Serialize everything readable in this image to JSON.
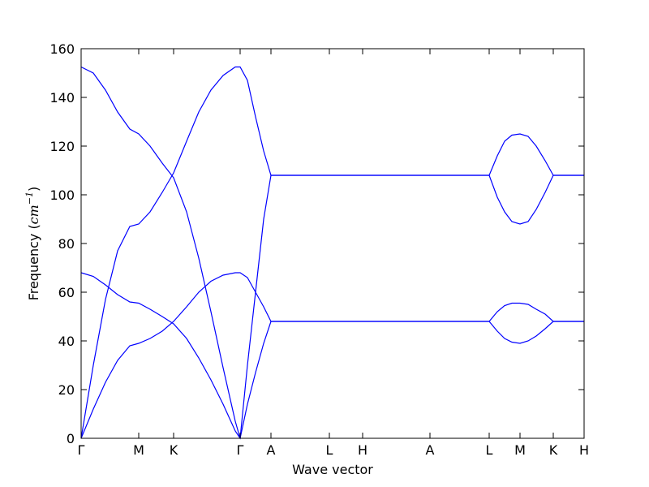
{
  "chart_data": {
    "type": "line",
    "xlabel": "Wave vector",
    "ylabel": [
      "Frequency (",
      "cm",
      "−1",
      ")"
    ],
    "xlim": [
      0,
      6.2
    ],
    "xticks": [
      {
        "value": 0,
        "label": "Γ"
      },
      {
        "value": 0.71,
        "label": "M"
      },
      {
        "value": 1.14,
        "label": "K"
      },
      {
        "value": 1.96,
        "label": "Γ"
      },
      {
        "value": 2.34,
        "label": "A"
      },
      {
        "value": 3.06,
        "label": "L"
      },
      {
        "value": 3.47,
        "label": "H"
      },
      {
        "value": 4.3,
        "label": "A"
      },
      {
        "value": 5.03,
        "label": "L"
      },
      {
        "value": 5.41,
        "label": "M"
      },
      {
        "value": 5.82,
        "label": "K"
      },
      {
        "value": 6.2,
        "label": "H"
      }
    ],
    "ylim": [
      0,
      160
    ],
    "yticks": [
      0,
      20,
      40,
      60,
      80,
      100,
      120,
      140,
      160
    ],
    "x": [
      0,
      0.15,
      0.3,
      0.45,
      0.6,
      0.71,
      0.85,
      1.0,
      1.14,
      1.3,
      1.45,
      1.6,
      1.75,
      1.9,
      1.96,
      2.05,
      2.15,
      2.25,
      2.34,
      3.06,
      3.47,
      4.3,
      5.03,
      5.13,
      5.22,
      5.31,
      5.41,
      5.51,
      5.61,
      5.72,
      5.82,
      6.2
    ],
    "series": [
      {
        "color": "#0000ff",
        "values": [
          152.5,
          150,
          143,
          134,
          127,
          125,
          120,
          113,
          107,
          93,
          74,
          52,
          29,
          7,
          0,
          30,
          60,
          90,
          108,
          108,
          108,
          108,
          108,
          116,
          122,
          124.5,
          125,
          124,
          120,
          114,
          108,
          108
        ]
      },
      {
        "color": "#0000ff",
        "values": [
          0,
          30,
          57,
          77,
          87,
          88,
          93,
          101,
          109,
          122,
          134,
          143,
          149,
          152.5,
          152.5,
          147,
          132,
          118,
          108,
          108,
          108,
          108,
          108,
          99,
          93,
          89,
          88,
          89,
          94,
          101,
          108,
          108
        ]
      },
      {
        "color": "#0000ff",
        "values": [
          68,
          66.5,
          63,
          59,
          56,
          55.5,
          53,
          50,
          47,
          41,
          33,
          24,
          14,
          3,
          0,
          14,
          27,
          39,
          48,
          48,
          48,
          48,
          48,
          52,
          54.5,
          55.5,
          55.5,
          55,
          53,
          51,
          48,
          48
        ]
      },
      {
        "color": "#0000ff",
        "values": [
          0,
          12,
          23,
          32,
          38,
          39,
          41,
          44,
          48,
          54,
          60,
          64.5,
          67,
          68,
          68,
          66,
          60,
          54,
          48,
          48,
          48,
          48,
          48,
          44,
          41,
          39.5,
          39,
          40,
          42,
          45,
          48,
          48
        ]
      }
    ]
  }
}
